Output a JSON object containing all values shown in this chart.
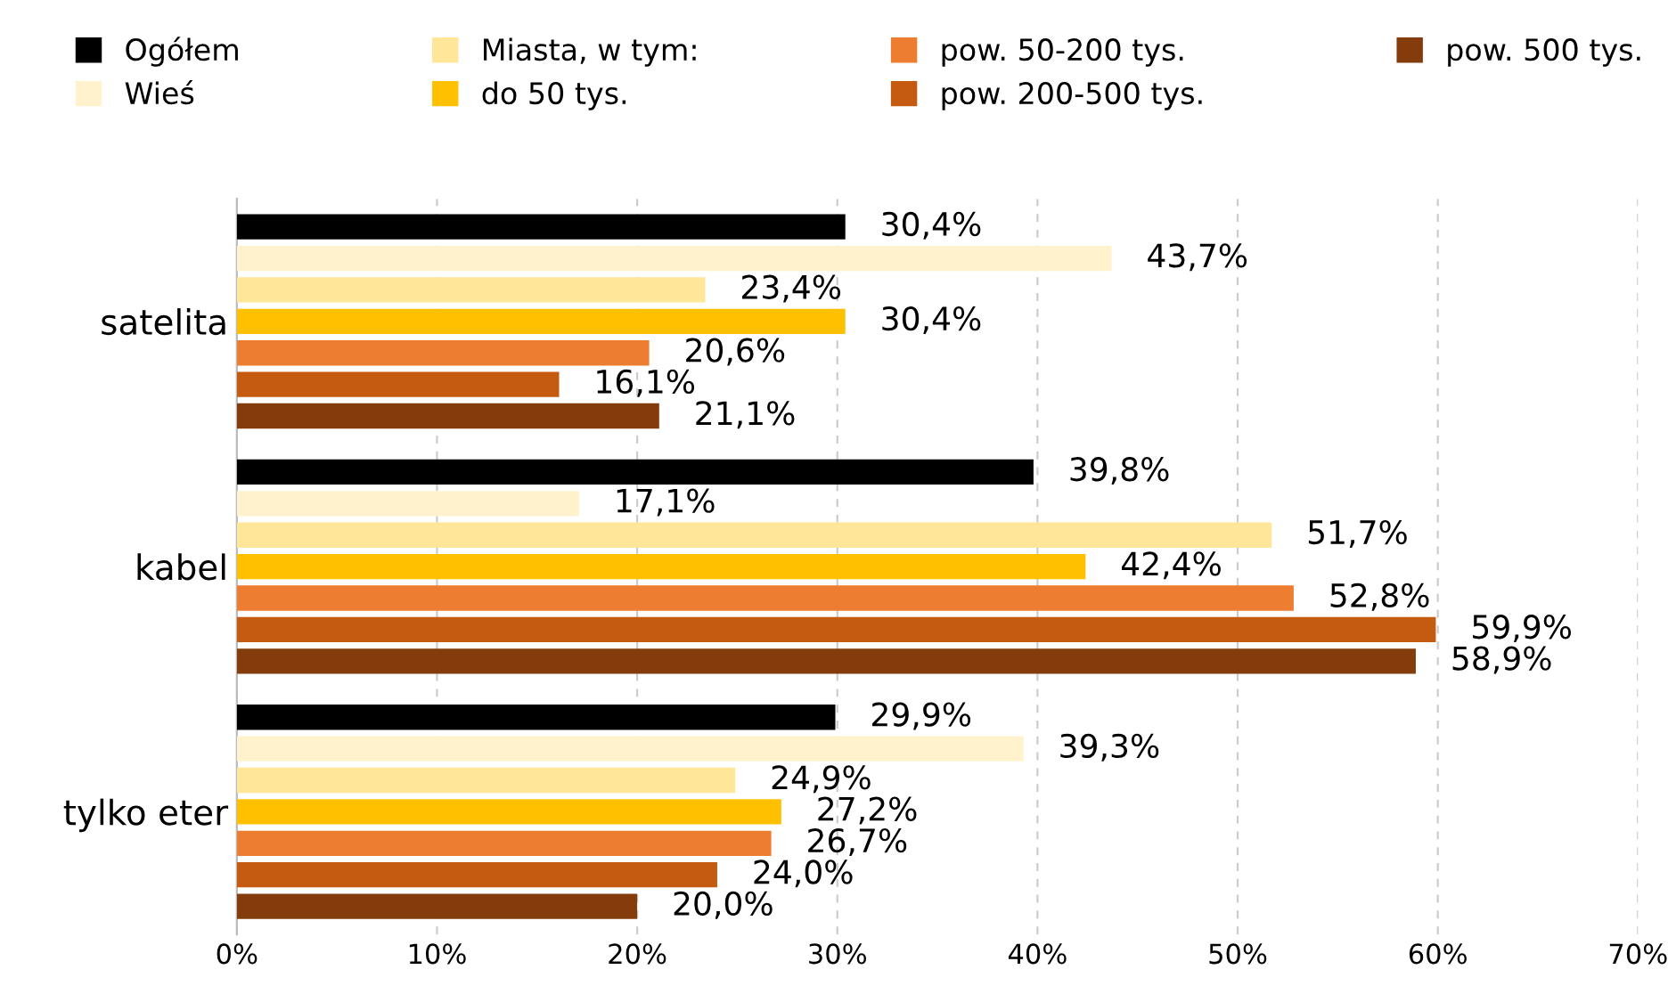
{
  "chart_data": {
    "type": "bar",
    "orientation": "horizontal",
    "categories": [
      "satelita",
      "kabel",
      "tylko eter"
    ],
    "series": [
      {
        "name": "Ogółem",
        "color": "#000000",
        "values": [
          30.4,
          39.8,
          29.9
        ],
        "value_labels": [
          "30,4%",
          "39,8%",
          "29,9%"
        ]
      },
      {
        "name": "Wieś",
        "color": "#fff2cc",
        "values": [
          43.7,
          17.1,
          39.3
        ],
        "value_labels": [
          "43,7%",
          "17,1%",
          "39,3%"
        ]
      },
      {
        "name": "Miasta, w tym:",
        "color": "#ffe699",
        "values": [
          23.4,
          51.7,
          24.9
        ],
        "value_labels": [
          "23,4%",
          "51,7%",
          "24,9%"
        ]
      },
      {
        "name": "do 50 tys.",
        "color": "#ffc000",
        "values": [
          30.4,
          42.4,
          27.2
        ],
        "value_labels": [
          "30,4%",
          "42,4%",
          "27,2%"
        ]
      },
      {
        "name": "pow. 50-200 tys.",
        "color": "#ed7d31",
        "values": [
          20.6,
          52.8,
          26.7
        ],
        "value_labels": [
          "20,6%",
          "52,8%",
          "26,7%"
        ]
      },
      {
        "name": "pow. 200-500 tys.",
        "color": "#c55a11",
        "values": [
          16.1,
          59.9,
          24.0
        ],
        "value_labels": [
          "16,1%",
          "59,9%",
          "24,0%"
        ]
      },
      {
        "name": "pow. 500 tys.",
        "color": "#843c0c",
        "values": [
          21.1,
          58.9,
          20.0
        ],
        "value_labels": [
          "21,1%",
          "58,9%",
          "20,0%"
        ]
      }
    ],
    "xlim": [
      0,
      70
    ],
    "xticks": [
      {
        "value": 0,
        "label": "0%"
      },
      {
        "value": 10,
        "label": "10%"
      },
      {
        "value": 20,
        "label": "20%"
      },
      {
        "value": 30,
        "label": "30%"
      },
      {
        "value": 40,
        "label": "40%"
      },
      {
        "value": 50,
        "label": "50%"
      },
      {
        "value": 60,
        "label": "60%"
      },
      {
        "value": 70,
        "label": "70%"
      }
    ],
    "grid": "x",
    "legend": "top"
  }
}
